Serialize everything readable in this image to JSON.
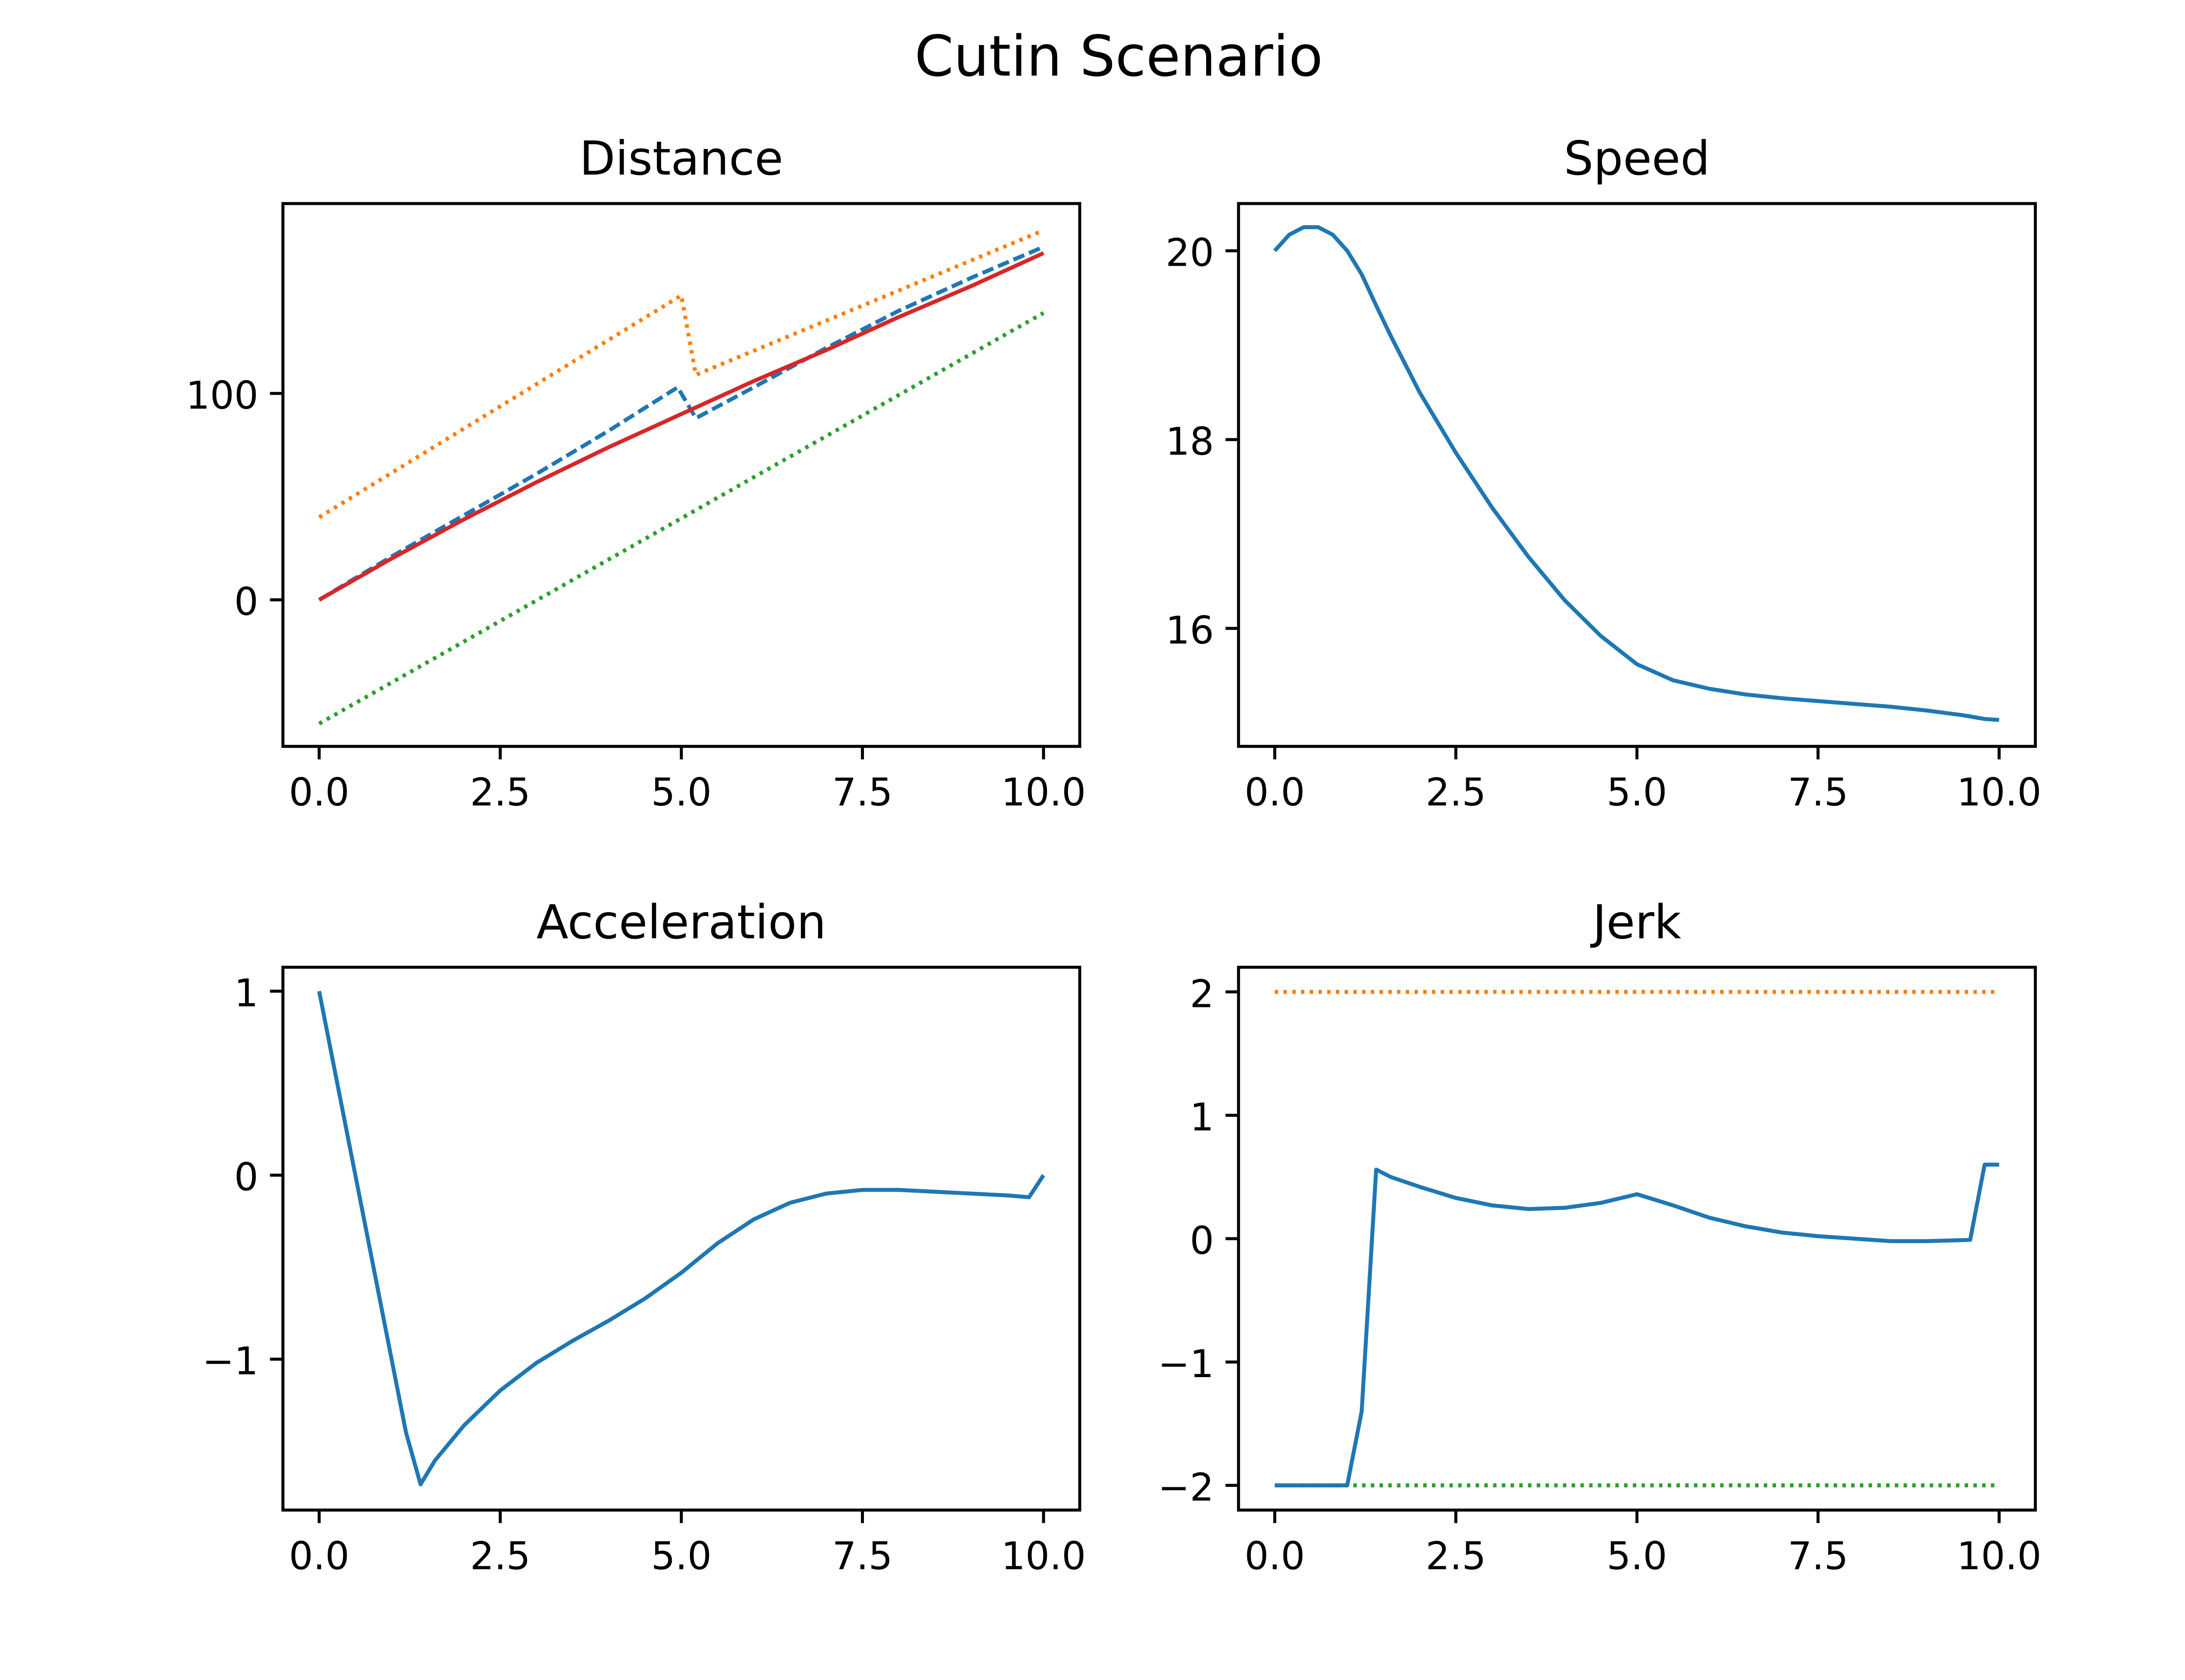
{
  "figure": {
    "title": "Cutin Scenario"
  },
  "chart_data": [
    {
      "type": "line",
      "title": "Distance",
      "xlabel": "",
      "ylabel": "",
      "xlim": [
        -0.5,
        10.5
      ],
      "ylim": [
        -71,
        192
      ],
      "xticks": [
        0.0,
        2.5,
        5.0,
        7.5,
        10.0
      ],
      "xtick_labels": [
        "0.0",
        "2.5",
        "5.0",
        "7.5",
        "10.0"
      ],
      "yticks": [
        0,
        100
      ],
      "ytick_labels": [
        "0",
        "100"
      ],
      "grid": false,
      "series": [
        {
          "color": "#ff7f0e",
          "style": "dotted",
          "x": [
            0,
            5.0,
            5.2,
            10.0
          ],
          "y": [
            40,
            147.5,
            109,
            179
          ]
        },
        {
          "color": "#1f77b4",
          "style": "dashed",
          "x": [
            0,
            1,
            2,
            3,
            4,
            4.95,
            5.2,
            6,
            7,
            8,
            9,
            10
          ],
          "y": [
            0,
            21,
            41,
            61,
            82,
            103,
            88,
            103,
            122,
            140,
            156,
            171
          ]
        },
        {
          "color": "#2ca02c",
          "style": "dotted",
          "x": [
            0,
            10
          ],
          "y": [
            -60,
            139
          ]
        },
        {
          "color": "#d62728",
          "style": "solid",
          "x": [
            0,
            1,
            2,
            3,
            4,
            5,
            6,
            7,
            8,
            9,
            10
          ],
          "y": [
            0,
            20,
            39,
            57,
            74,
            90,
            106,
            121,
            137,
            152,
            168
          ]
        }
      ]
    },
    {
      "type": "line",
      "title": "Speed",
      "xlabel": "",
      "ylabel": "",
      "xlim": [
        -0.5,
        10.5
      ],
      "ylim": [
        14.75,
        20.5
      ],
      "xticks": [
        0.0,
        2.5,
        5.0,
        7.5,
        10.0
      ],
      "xtick_labels": [
        "0.0",
        "2.5",
        "5.0",
        "7.5",
        "10.0"
      ],
      "yticks": [
        16,
        18,
        20
      ],
      "ytick_labels": [
        "16",
        "18",
        "20"
      ],
      "grid": false,
      "series": [
        {
          "color": "#1f77b4",
          "style": "solid",
          "x": [
            0,
            0.2,
            0.4,
            0.6,
            0.8,
            1.0,
            1.2,
            1.4,
            1.6,
            1.8,
            2.0,
            2.5,
            3.0,
            3.5,
            4.0,
            4.5,
            5.0,
            5.5,
            6.0,
            6.5,
            7.0,
            7.5,
            8.0,
            8.5,
            9.0,
            9.5,
            9.8,
            10.0
          ],
          "y": [
            20.0,
            20.17,
            20.25,
            20.25,
            20.17,
            20.0,
            19.75,
            19.42,
            19.1,
            18.8,
            18.5,
            17.86,
            17.28,
            16.76,
            16.3,
            15.92,
            15.62,
            15.45,
            15.36,
            15.3,
            15.26,
            15.23,
            15.2,
            15.17,
            15.13,
            15.08,
            15.04,
            15.03
          ]
        }
      ]
    },
    {
      "type": "line",
      "title": "Acceleration",
      "xlabel": "",
      "ylabel": "",
      "xlim": [
        -0.5,
        10.5
      ],
      "ylim": [
        -1.82,
        1.13
      ],
      "xticks": [
        0.0,
        2.5,
        5.0,
        7.5,
        10.0
      ],
      "xtick_labels": [
        "0.0",
        "2.5",
        "5.0",
        "7.5",
        "10.0"
      ],
      "yticks": [
        -1,
        0,
        1
      ],
      "ytick_labels": [
        "−1",
        "0",
        "1"
      ],
      "grid": false,
      "series": [
        {
          "color": "#1f77b4",
          "style": "solid",
          "x": [
            0,
            1.2,
            1.4,
            1.6,
            2.0,
            2.5,
            3.0,
            3.5,
            4.0,
            4.5,
            5.0,
            5.5,
            6.0,
            6.5,
            7.0,
            7.5,
            8.0,
            8.5,
            9.0,
            9.5,
            9.8,
            10.0
          ],
          "y": [
            1.0,
            -1.4,
            -1.68,
            -1.55,
            -1.36,
            -1.17,
            -1.02,
            -0.9,
            -0.79,
            -0.67,
            -0.53,
            -0.37,
            -0.24,
            -0.15,
            -0.1,
            -0.08,
            -0.08,
            -0.09,
            -0.1,
            -0.11,
            -0.12,
            0.0
          ]
        }
      ]
    },
    {
      "type": "line",
      "title": "Jerk",
      "xlabel": "",
      "ylabel": "",
      "xlim": [
        -0.5,
        10.5
      ],
      "ylim": [
        -2.2,
        2.2
      ],
      "xticks": [
        0.0,
        2.5,
        5.0,
        7.5,
        10.0
      ],
      "xtick_labels": [
        "0.0",
        "2.5",
        "5.0",
        "7.5",
        "10.0"
      ],
      "yticks": [
        -2,
        -1,
        0,
        1,
        2
      ],
      "ytick_labels": [
        "−2",
        "−1",
        "0",
        "1",
        "2"
      ],
      "grid": false,
      "series": [
        {
          "color": "#ff7f0e",
          "style": "dotted",
          "x": [
            0,
            10
          ],
          "y": [
            2,
            2
          ]
        },
        {
          "color": "#2ca02c",
          "style": "dotted",
          "x": [
            0,
            10
          ],
          "y": [
            -2,
            -2
          ]
        },
        {
          "color": "#1f77b4",
          "style": "solid",
          "x": [
            0,
            1.0,
            1.2,
            1.4,
            1.6,
            2.0,
            2.5,
            3.0,
            3.5,
            4.0,
            4.5,
            5.0,
            5.5,
            6.0,
            6.5,
            7.0,
            7.5,
            8.0,
            8.5,
            9.0,
            9.6,
            9.8,
            10.0
          ],
          "y": [
            -2,
            -2,
            -1.4,
            0.56,
            0.5,
            0.42,
            0.33,
            0.27,
            0.24,
            0.25,
            0.29,
            0.36,
            0.27,
            0.17,
            0.1,
            0.05,
            0.02,
            0.0,
            -0.02,
            -0.02,
            -0.01,
            0.6,
            0.6
          ]
        }
      ]
    }
  ]
}
